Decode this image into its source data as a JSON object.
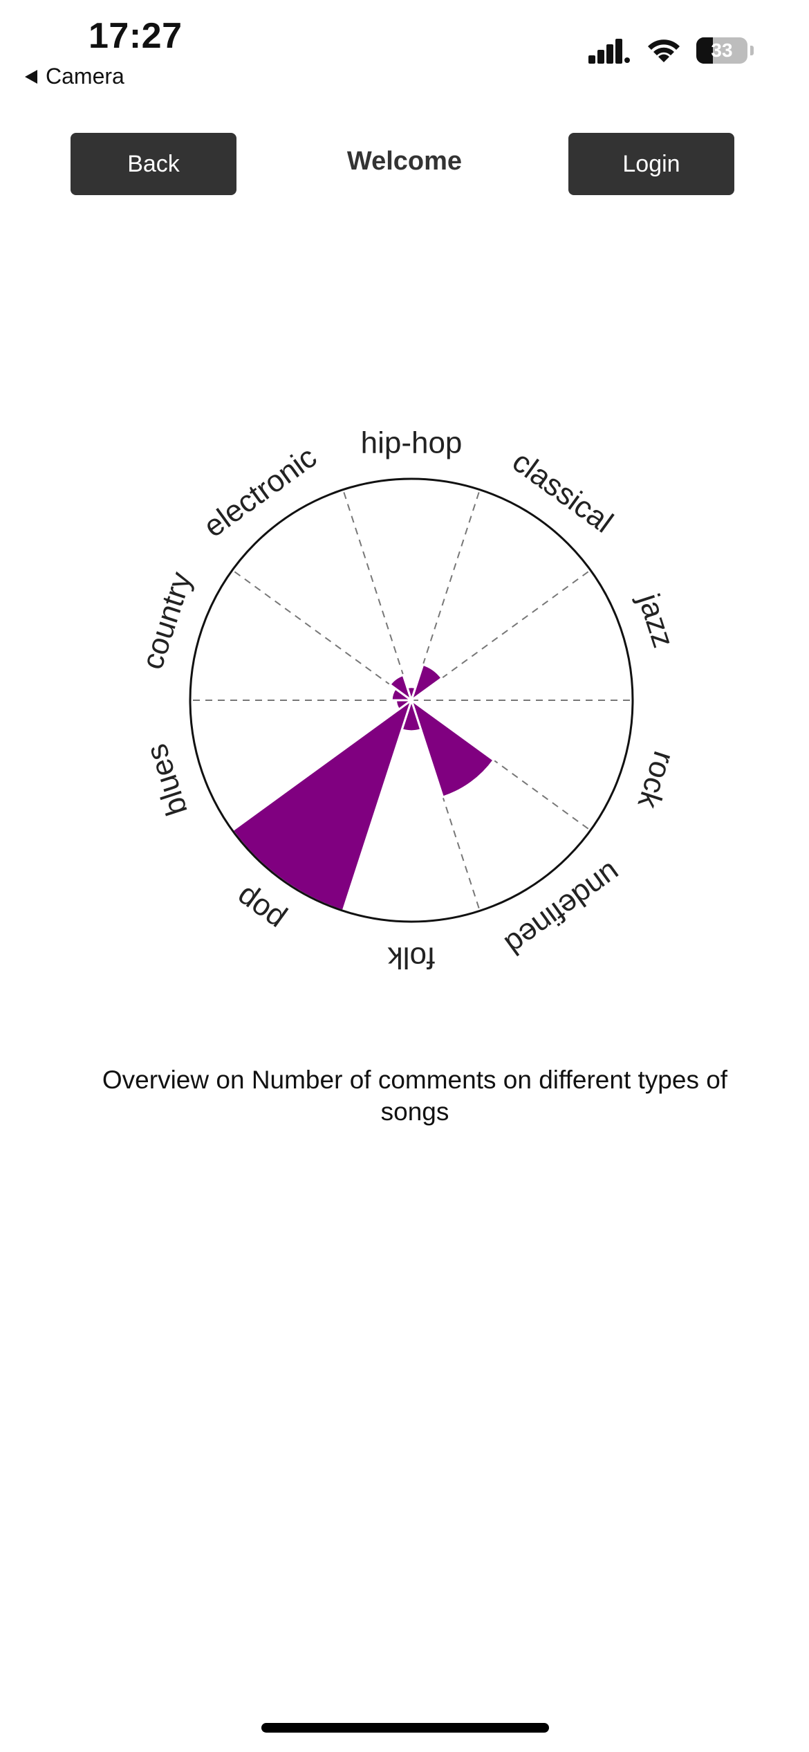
{
  "status_bar": {
    "time": "17:27",
    "back_app": "Camera",
    "battery": "33"
  },
  "nav": {
    "back_label": "Back",
    "title": "Welcome",
    "login_label": "Login"
  },
  "chart_data": {
    "type": "polar-area",
    "title": "Overview on Number of comments on different types of songs",
    "categories": [
      "rock",
      "undefined",
      "folk",
      "pop",
      "blues",
      "country",
      "electronic",
      "hip-hop",
      "classical",
      "jazz"
    ],
    "values": [
      0,
      0.46,
      0.14,
      1.0,
      0.07,
      0.09,
      0.12,
      0.06,
      0.17,
      0.0
    ],
    "max": 1.0,
    "grid": true,
    "colors": {
      "bar": "#800080",
      "circle": "#111111",
      "grid": "#777777"
    }
  }
}
